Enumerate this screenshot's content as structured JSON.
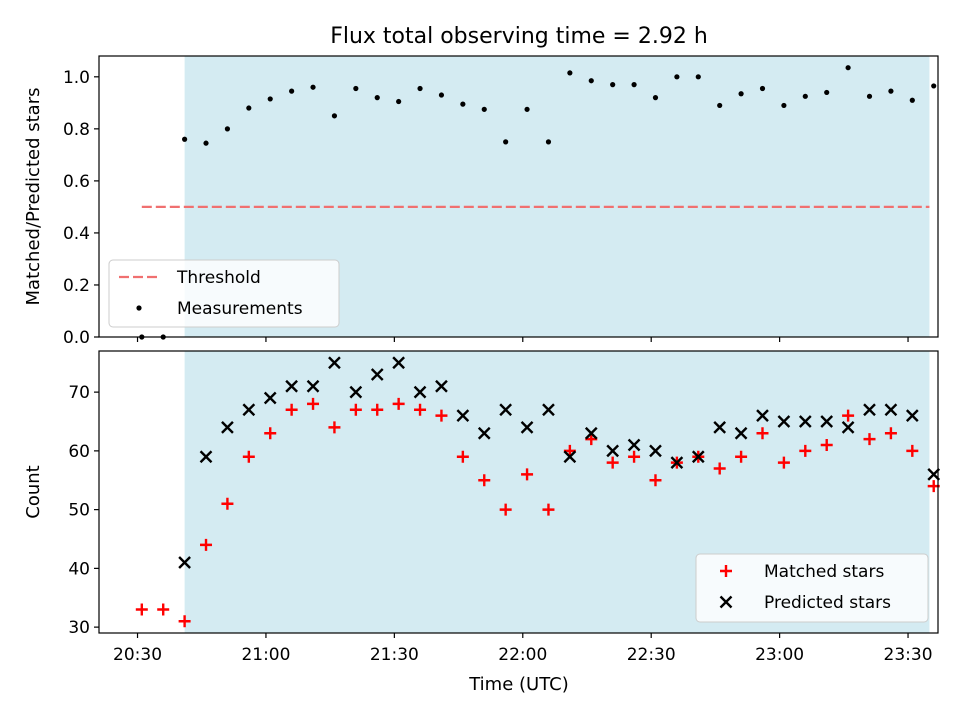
{
  "figure": {
    "title": "Flux total observing time = 2.92 h",
    "xlabel": "Time (UTC)",
    "xticks": [
      "20:30",
      "21:00",
      "21:30",
      "22:00",
      "22:30",
      "23:00",
      "23:30"
    ]
  },
  "colors": {
    "span_fill": "#add8e6",
    "threshold": "#f07070",
    "matched": "#ff0000",
    "predicted": "#000000",
    "measurements": "#000000"
  },
  "chart_data": [
    {
      "type": "scatter",
      "ylabel": "Matched/Predicted stars",
      "xlim": [
        "20:21",
        "23:37"
      ],
      "ylim": [
        0,
        1.08
      ],
      "yticks": [
        "0.0",
        "0.2",
        "0.4",
        "0.6",
        "0.8",
        "1.0"
      ],
      "highlight_span": [
        "20:41",
        "23:35"
      ],
      "threshold": {
        "label": "Threshold",
        "value": 0.5,
        "from": "20:31",
        "to": "23:35",
        "style": "dashed"
      },
      "legend_position": "lower-left",
      "series": [
        {
          "name": "Measurements",
          "marker": "dot",
          "x": [
            "20:31",
            "20:36",
            "20:41",
            "20:46",
            "20:51",
            "20:56",
            "21:01",
            "21:06",
            "21:11",
            "21:16",
            "21:21",
            "21:26",
            "21:31",
            "21:36",
            "21:41",
            "21:46",
            "21:51",
            "21:56",
            "22:01",
            "22:06",
            "22:11",
            "22:16",
            "22:21",
            "22:26",
            "22:31",
            "22:36",
            "22:41",
            "22:46",
            "22:51",
            "22:56",
            "23:01",
            "23:06",
            "23:11",
            "23:16",
            "23:21",
            "23:26",
            "23:31",
            "23:36"
          ],
          "y": [
            0.0,
            0.0,
            0.76,
            0.745,
            0.8,
            0.88,
            0.915,
            0.945,
            0.96,
            0.85,
            0.955,
            0.92,
            0.905,
            0.955,
            0.93,
            0.895,
            0.875,
            0.75,
            0.875,
            0.75,
            1.015,
            0.985,
            0.97,
            0.97,
            0.92,
            1.0,
            1.0,
            0.89,
            0.935,
            0.955,
            0.89,
            0.925,
            0.94,
            1.035,
            0.925,
            0.945,
            0.91,
            0.965
          ]
        }
      ]
    },
    {
      "type": "scatter",
      "ylabel": "Count",
      "xlim": [
        "20:21",
        "23:37"
      ],
      "ylim": [
        29,
        77
      ],
      "yticks": [
        "30",
        "40",
        "50",
        "60",
        "70"
      ],
      "highlight_span": [
        "20:41",
        "23:35"
      ],
      "legend_position": "lower-right",
      "series": [
        {
          "name": "Matched stars",
          "marker": "plus",
          "x": [
            "20:31",
            "20:36",
            "20:41",
            "20:46",
            "20:51",
            "20:56",
            "21:01",
            "21:06",
            "21:11",
            "21:16",
            "21:21",
            "21:26",
            "21:31",
            "21:36",
            "21:41",
            "21:46",
            "21:51",
            "21:56",
            "22:01",
            "22:06",
            "22:11",
            "22:16",
            "22:21",
            "22:26",
            "22:31",
            "22:36",
            "22:41",
            "22:46",
            "22:51",
            "22:56",
            "23:01",
            "23:06",
            "23:11",
            "23:16",
            "23:21",
            "23:26",
            "23:31",
            "23:36"
          ],
          "y": [
            33,
            33,
            31,
            44,
            51,
            59,
            63,
            67,
            68,
            64,
            67,
            67,
            68,
            67,
            66,
            59,
            55,
            50,
            56,
            50,
            60,
            62,
            58,
            59,
            55,
            58,
            59,
            57,
            59,
            63,
            58,
            60,
            61,
            66,
            62,
            63,
            60,
            54
          ]
        },
        {
          "name": "Predicted stars",
          "marker": "x",
          "x": [
            "20:41",
            "20:46",
            "20:51",
            "20:56",
            "21:01",
            "21:06",
            "21:11",
            "21:16",
            "21:21",
            "21:26",
            "21:31",
            "21:36",
            "21:41",
            "21:46",
            "21:51",
            "21:56",
            "22:01",
            "22:06",
            "22:11",
            "22:16",
            "22:21",
            "22:26",
            "22:31",
            "22:36",
            "22:41",
            "22:46",
            "22:51",
            "22:56",
            "23:01",
            "23:06",
            "23:11",
            "23:16",
            "23:21",
            "23:26",
            "23:31",
            "23:36"
          ],
          "y": [
            41,
            59,
            64,
            67,
            69,
            71,
            71,
            75,
            70,
            73,
            75,
            70,
            71,
            66,
            63,
            67,
            64,
            67,
            59,
            63,
            60,
            61,
            60,
            58,
            59,
            64,
            63,
            66,
            65,
            65,
            65,
            64,
            67,
            67,
            66,
            56
          ]
        }
      ]
    }
  ]
}
